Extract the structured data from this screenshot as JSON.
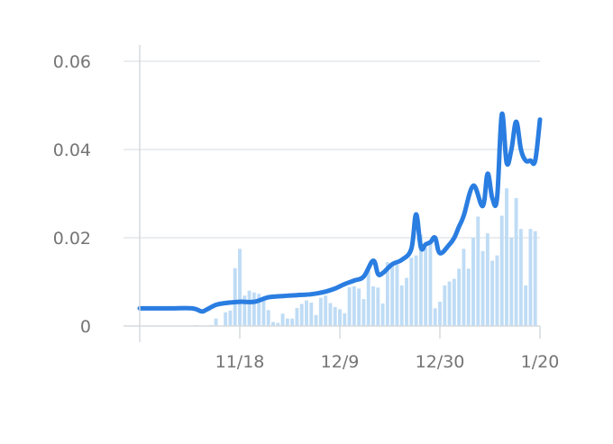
{
  "colors": {
    "line": "#2a7de1",
    "bars": "#bfdcf5",
    "grid": "#e3e7ea",
    "axis": "#d5dadd",
    "text": "#757575"
  },
  "chart_data": {
    "type": "bar+line",
    "title": "",
    "xlabel": "",
    "ylabel": "",
    "ylim": [
      0,
      0.06
    ],
    "yticks": [
      0,
      0.02,
      0.04,
      0.06
    ],
    "ytick_labels": [
      "0",
      "0.02",
      "0.04",
      "0.06"
    ],
    "xrange": [
      "2020-10-28",
      "2021-01-20"
    ],
    "xticks": [
      "2020-11-18",
      "2020-12-09",
      "2020-12-30",
      "2021-01-20"
    ],
    "xtick_labels": [
      "11/18",
      "12/9",
      "12/30",
      "1/20"
    ],
    "grid": "horizontal",
    "series": [
      {
        "type": "bar",
        "x": [
          "2020-11-08",
          "2020-11-09",
          "2020-11-10",
          "2020-11-11",
          "2020-11-12",
          "2020-11-13",
          "2020-11-14",
          "2020-11-15",
          "2020-11-16",
          "2020-11-17",
          "2020-11-18",
          "2020-11-19",
          "2020-11-20",
          "2020-11-21",
          "2020-11-22",
          "2020-11-23",
          "2020-11-24",
          "2020-11-25",
          "2020-11-26",
          "2020-11-27",
          "2020-11-28",
          "2020-11-29",
          "2020-11-30",
          "2020-12-01",
          "2020-12-02",
          "2020-12-03",
          "2020-12-04",
          "2020-12-05",
          "2020-12-06",
          "2020-12-07",
          "2020-12-08",
          "2020-12-09",
          "2020-12-10",
          "2020-12-11",
          "2020-12-12",
          "2020-12-13",
          "2020-12-14",
          "2020-12-15",
          "2020-12-16",
          "2020-12-17",
          "2020-12-18",
          "2020-12-19",
          "2020-12-20",
          "2020-12-21",
          "2020-12-22",
          "2020-12-23",
          "2020-12-24",
          "2020-12-25",
          "2020-12-26",
          "2020-12-27",
          "2020-12-28",
          "2020-12-29",
          "2020-12-30",
          "2020-12-31",
          "2021-01-01",
          "2021-01-02",
          "2021-01-03",
          "2021-01-04",
          "2021-01-05",
          "2021-01-06",
          "2021-01-07",
          "2021-01-08",
          "2021-01-09",
          "2021-01-10",
          "2021-01-11",
          "2021-01-12",
          "2021-01-13",
          "2021-01-14",
          "2021-01-15",
          "2021-01-16",
          "2021-01-17",
          "2021-01-18",
          "2021-01-19",
          "2021-01-20"
        ],
        "values": [
          0.0001,
          0.0002,
          0.0,
          0.0,
          0.0002,
          0.0017,
          0.0,
          0.0031,
          0.0035,
          0.0131,
          0.0175,
          0.0069,
          0.008,
          0.0076,
          0.0073,
          0.0058,
          0.0036,
          0.0009,
          0.0007,
          0.0028,
          0.0017,
          0.0017,
          0.0041,
          0.005,
          0.0058,
          0.0053,
          0.0025,
          0.0064,
          0.0069,
          0.0052,
          0.0043,
          0.0038,
          0.0029,
          0.0088,
          0.009,
          0.0085,
          0.0061,
          0.0127,
          0.009,
          0.0087,
          0.0051,
          0.0145,
          0.0136,
          0.0139,
          0.0092,
          0.0109,
          0.0155,
          0.016,
          0.0207,
          0.0177,
          0.0195,
          0.004,
          0.0055,
          0.0092,
          0.0101,
          0.0107,
          0.013,
          0.0175,
          0.013,
          0.02,
          0.0248,
          0.017,
          0.021,
          0.0148,
          0.016,
          0.025,
          0.0312,
          0.02,
          0.029,
          0.022,
          0.0092,
          0.022,
          0.0215,
          0.0
        ]
      },
      {
        "type": "line",
        "x": [
          "2020-10-28",
          "2020-11-03",
          "2020-11-08",
          "2020-11-10",
          "2020-11-11",
          "2020-11-13",
          "2020-11-15",
          "2020-11-18",
          "2020-11-21",
          "2020-11-24",
          "2020-11-27",
          "2020-11-30",
          "2020-12-03",
          "2020-12-06",
          "2020-12-08",
          "2020-12-10",
          "2020-12-12",
          "2020-12-14",
          "2020-12-16",
          "2020-12-17",
          "2020-12-18",
          "2020-12-20",
          "2020-12-22",
          "2020-12-24",
          "2020-12-25",
          "2020-12-26",
          "2020-12-27",
          "2020-12-28",
          "2020-12-29",
          "2020-12-30",
          "2021-01-01",
          "2021-01-02",
          "2021-01-03",
          "2021-01-04",
          "2021-01-06",
          "2021-01-08",
          "2021-01-09",
          "2021-01-10",
          "2021-01-11",
          "2021-01-12",
          "2021-01-13",
          "2021-01-14",
          "2021-01-15",
          "2021-01-16",
          "2021-01-17",
          "2021-01-18",
          "2021-01-19",
          "2021-01-20"
        ],
        "values": [
          0.004,
          0.004,
          0.004,
          0.0033,
          0.0037,
          0.0048,
          0.0052,
          0.0055,
          0.0055,
          0.0065,
          0.0068,
          0.007,
          0.0072,
          0.0078,
          0.0085,
          0.0095,
          0.0103,
          0.0112,
          0.0148,
          0.0118,
          0.012,
          0.014,
          0.015,
          0.0175,
          0.0253,
          0.0178,
          0.0185,
          0.019,
          0.02,
          0.0165,
          0.0185,
          0.02,
          0.0225,
          0.025,
          0.0318,
          0.0272,
          0.0345,
          0.029,
          0.029,
          0.048,
          0.037,
          0.04,
          0.0463,
          0.04,
          0.0375,
          0.0375,
          0.0375,
          0.0468
        ]
      }
    ]
  }
}
